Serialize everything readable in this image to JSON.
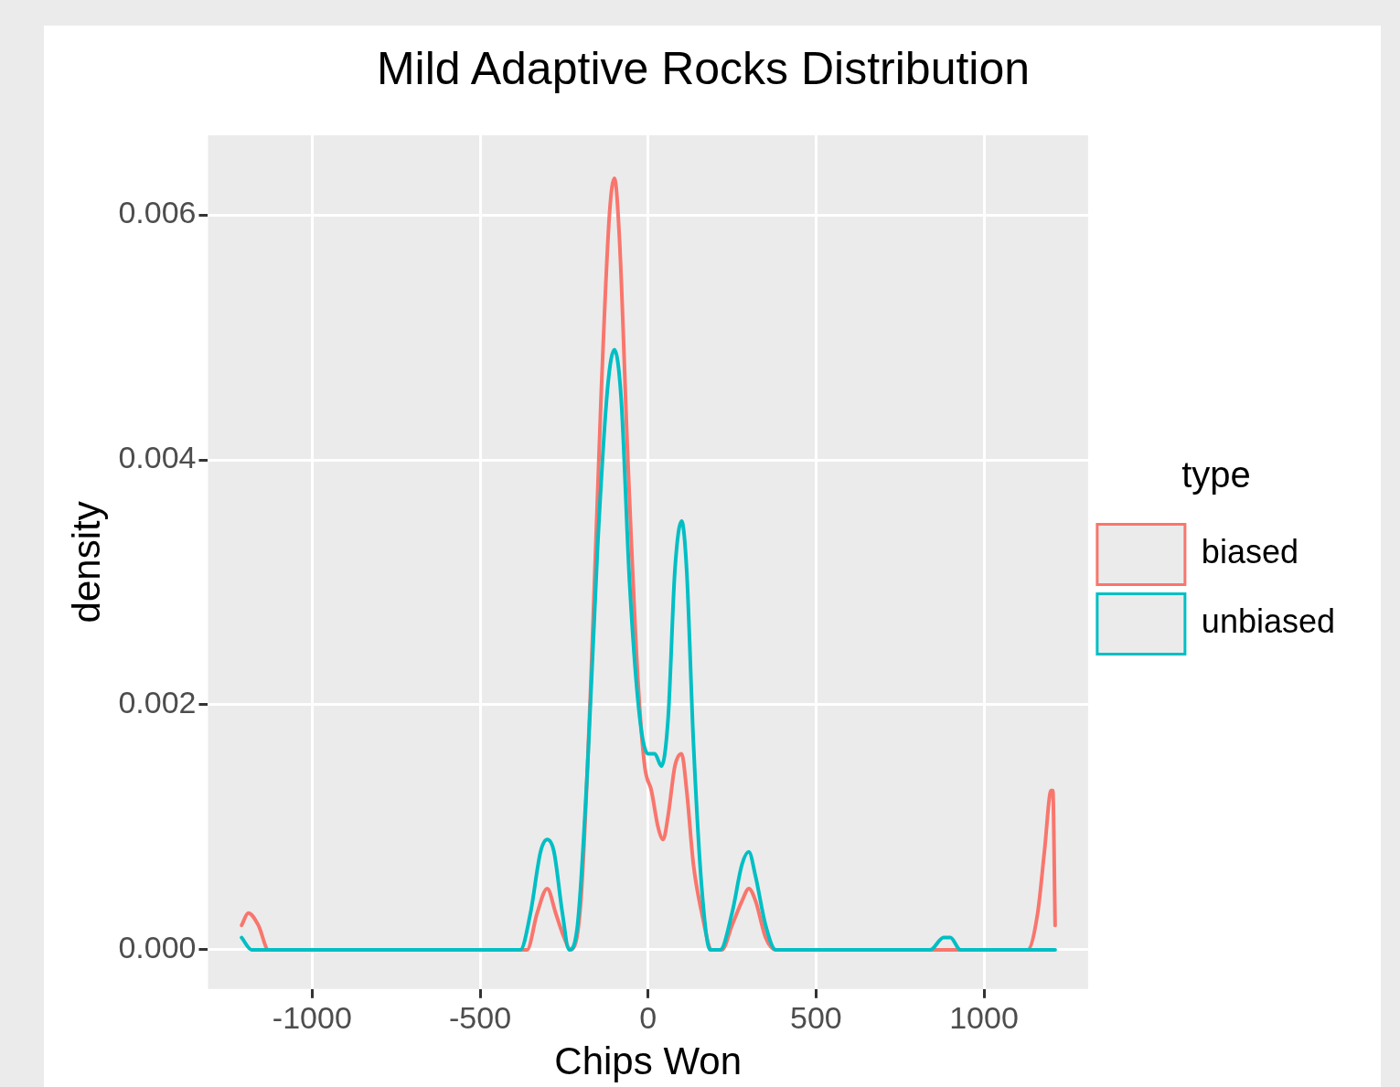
{
  "chart_data": {
    "type": "line",
    "title": "Mild Adaptive Rocks Distribution",
    "xlabel": "Chips Won",
    "ylabel": "density",
    "legend_title": "type",
    "legend": "right",
    "grid": true,
    "marker": "none",
    "line_style": "solid",
    "xlim": [
      -1310,
      1310
    ],
    "ylim": [
      -0.00032,
      0.00665
    ],
    "xticks": [
      -1000,
      -500,
      0,
      500,
      1000
    ],
    "yticks": [
      {
        "value": 0,
        "label": "0.000"
      },
      {
        "value": 0.002,
        "label": "0.002"
      },
      {
        "value": 0.004,
        "label": "0.004"
      },
      {
        "value": 0.006,
        "label": "0.006"
      }
    ],
    "series": [
      {
        "name": "biased",
        "color": "#f8766d",
        "x": [
          -1210,
          -1190,
          -1160,
          -1130,
          -1100,
          -400,
          -360,
          -330,
          -300,
          -275,
          -250,
          -230,
          -200,
          -170,
          -140,
          -115,
          -100,
          -85,
          -60,
          -30,
          -10,
          10,
          30,
          45,
          60,
          80,
          100,
          115,
          135,
          160,
          190,
          220,
          250,
          280,
          300,
          320,
          350,
          380,
          1100,
          1130,
          1160,
          1180,
          1200,
          1205,
          1212
        ],
        "values": [
          0.0002,
          0.0003,
          0.0002,
          0,
          0,
          0,
          0,
          0.0003,
          0.0005,
          0.0003,
          0.0001,
          0,
          0.0004,
          0.0022,
          0.0045,
          0.006,
          0.0063,
          0.0058,
          0.004,
          0.0022,
          0.0015,
          0.0013,
          0.001,
          0.0009,
          0.0011,
          0.0015,
          0.0016,
          0.0013,
          0.0007,
          0.0003,
          0,
          0,
          0.0002,
          0.0004,
          0.0005,
          0.0004,
          0.0001,
          0,
          0,
          0,
          0.0003,
          0.0008,
          0.0013,
          0.0013,
          0.0002
        ]
      },
      {
        "name": "unbiased",
        "color": "#00bfc4",
        "x": [
          -1210,
          -1180,
          -1150,
          -950,
          -900,
          -850,
          -420,
          -380,
          -350,
          -320,
          -300,
          -280,
          -255,
          -235,
          -210,
          -180,
          -150,
          -120,
          -100,
          -80,
          -55,
          -25,
          0,
          20,
          40,
          60,
          80,
          100,
          115,
          135,
          160,
          185,
          215,
          250,
          280,
          300,
          320,
          350,
          380,
          410,
          840,
          880,
          900,
          930,
          970,
          1180,
          1212
        ],
        "values": [
          0.0001,
          0,
          0,
          0,
          0,
          0,
          0,
          0,
          0.0003,
          0.0008,
          0.0009,
          0.0008,
          0.0003,
          0,
          0.0002,
          0.0015,
          0.0033,
          0.0046,
          0.0049,
          0.0045,
          0.003,
          0.0019,
          0.0016,
          0.0016,
          0.0015,
          0.0019,
          0.0031,
          0.0035,
          0.0031,
          0.0017,
          0.0005,
          0,
          0,
          0.0003,
          0.0007,
          0.0008,
          0.0006,
          0.0002,
          0,
          0,
          0,
          0.0001,
          0.0001,
          0,
          0,
          0,
          0
        ]
      }
    ]
  }
}
